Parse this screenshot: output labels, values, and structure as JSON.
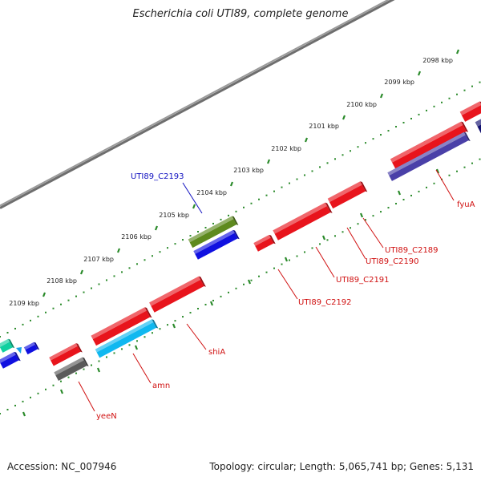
{
  "title": "Escherichia coli UTI89, complete genome",
  "footer": {
    "accession": "Accession: NC_007946",
    "topology": "Topology: circular; Length: 5,065,741 bp; Genes: 5,131"
  },
  "ticks": [
    "2098 kbp",
    "2099 kbp",
    "2100 kbp",
    "2101 kbp",
    "2102 kbp",
    "2103 kbp",
    "2104 kbp",
    "2105 kbp",
    "2106 kbp",
    "2107 kbp",
    "2108 kbp",
    "2109 kbp"
  ],
  "colors": {
    "red": "#e8141c",
    "blue": "#1010e0",
    "cyan": "#10b8f0",
    "olive": "#5e8a1e",
    "gray": "#5a5a5a",
    "navy": "#121070",
    "slate": "#4a40a8",
    "teal": "#10d0a0",
    "backbone": "#777777",
    "dots": "#2a8a2a",
    "label_red": "#d01010",
    "label_blue": "#1010c0"
  },
  "labels": [
    {
      "name": "fyuA",
      "color": "red"
    },
    {
      "name": "UTI89_C2189",
      "color": "red"
    },
    {
      "name": "UTI89_C2190",
      "color": "red"
    },
    {
      "name": "UTI89_C2191",
      "color": "red"
    },
    {
      "name": "UTI89_C2192",
      "color": "red"
    },
    {
      "name": "UTI89_C2193",
      "color": "blue"
    },
    {
      "name": "shiA",
      "color": "red"
    },
    {
      "name": "amn",
      "color": "red"
    },
    {
      "name": "yeeN",
      "color": "red"
    }
  ]
}
